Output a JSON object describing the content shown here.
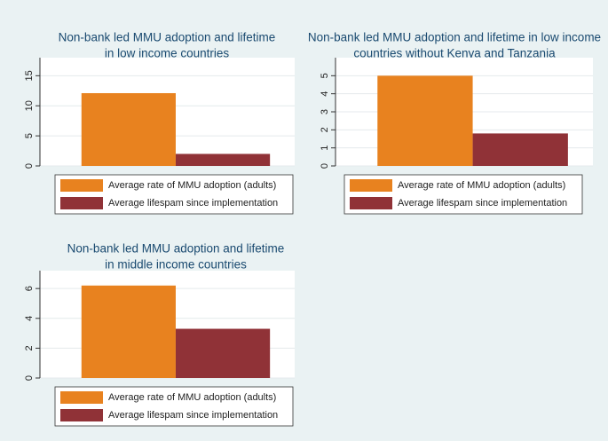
{
  "chart_data": [
    {
      "type": "bar",
      "title": [
        "Non-bank led MMU adoption and lifetime",
        "in low income countries"
      ],
      "series": [
        {
          "name": "Average rate of MMU adoption (adults)",
          "color": "#e8821f",
          "values": [
            12.1
          ]
        },
        {
          "name": "Average lifespam since implementation",
          "color": "#903237",
          "values": [
            2
          ]
        }
      ],
      "ylim": [
        0,
        18
      ],
      "yticks": [
        0,
        5,
        10,
        15
      ],
      "grid": true
    },
    {
      "type": "bar",
      "title": [
        "Non-bank led MMU adoption and lifetime in low income",
        "countries without Kenya and Tanzania"
      ],
      "series": [
        {
          "name": "Average rate of MMU adoption (adults)",
          "color": "#e8821f",
          "values": [
            5
          ]
        },
        {
          "name": "Average lifespam since implementation",
          "color": "#903237",
          "values": [
            1.8
          ]
        }
      ],
      "ylim": [
        0,
        6
      ],
      "yticks": [
        0,
        1,
        2,
        3,
        4,
        5
      ],
      "grid": true
    },
    {
      "type": "bar",
      "title": [
        "Non-bank led MMU adoption and lifetime",
        "in middle income countries"
      ],
      "series": [
        {
          "name": "Average rate of MMU adoption (adults)",
          "color": "#e8821f",
          "values": [
            6.2
          ]
        },
        {
          "name": "Average lifespam since implementation",
          "color": "#903237",
          "values": [
            3.3
          ]
        }
      ],
      "ylim": [
        0,
        7.2
      ],
      "yticks": [
        0,
        2,
        4,
        6
      ],
      "grid": true
    }
  ]
}
